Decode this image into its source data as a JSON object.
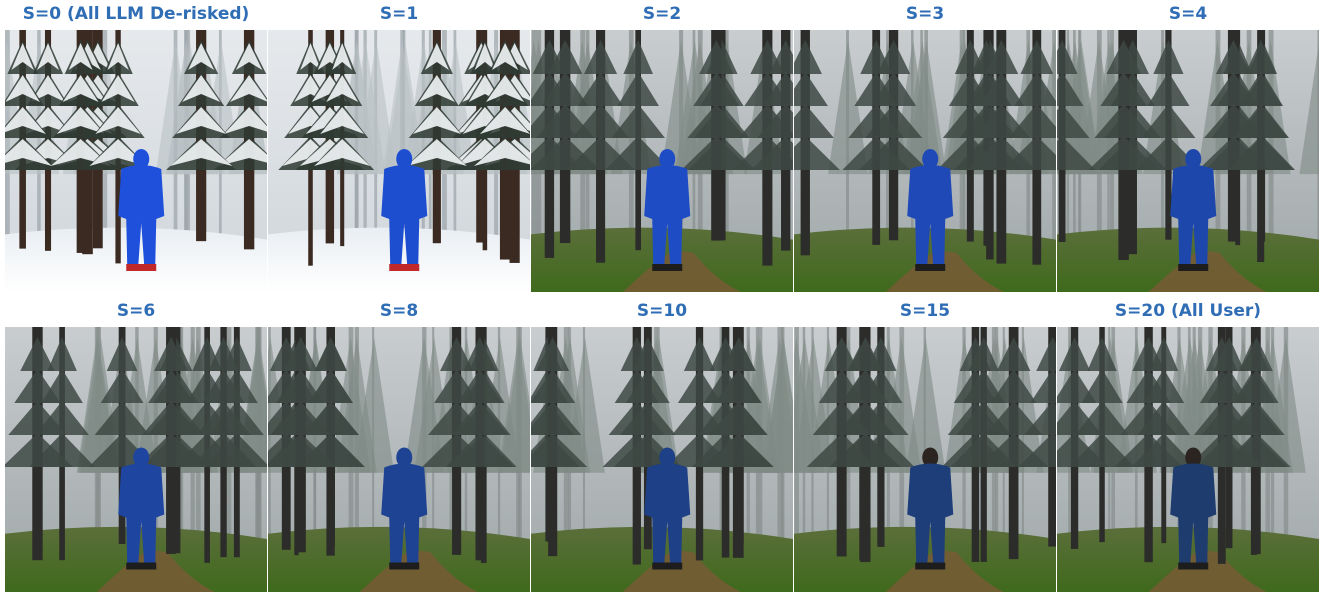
{
  "panels": [
    {
      "label": "S=0 (All LLM De-risked)"
    },
    {
      "label": "S=1"
    },
    {
      "label": "S=2"
    },
    {
      "label": "S=3"
    },
    {
      "label": "S=4"
    },
    {
      "label": "S=6"
    },
    {
      "label": "S=8"
    },
    {
      "label": "S=10"
    },
    {
      "label": "S=15"
    },
    {
      "label": "S=20 (All User)"
    }
  ]
}
